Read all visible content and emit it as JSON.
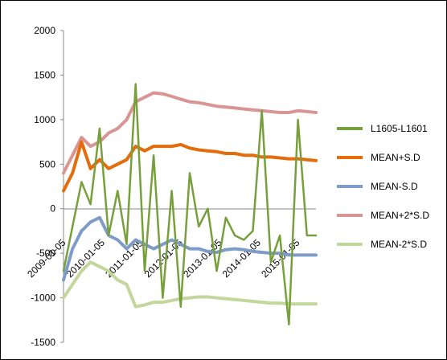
{
  "chart_data": {
    "type": "line",
    "title": "",
    "xlabel": "",
    "ylabel": "",
    "ylim": [
      -1500,
      2000
    ],
    "yticks": [
      2000,
      1500,
      1000,
      500,
      0,
      -500,
      -1000,
      -1500
    ],
    "xticks": [
      "2009-01-05",
      "2010-01-05",
      "2011-01-05",
      "2012-01-05",
      "2013-01-05",
      "2014-01-05",
      "2015-01-05"
    ],
    "x": [
      "2009-01",
      "2009-04",
      "2009-07",
      "2009-10",
      "2010-01",
      "2010-04",
      "2010-07",
      "2010-10",
      "2011-01",
      "2011-04",
      "2011-07",
      "2011-10",
      "2012-01",
      "2012-04",
      "2012-07",
      "2012-10",
      "2013-01",
      "2013-04",
      "2013-07",
      "2013-10",
      "2014-01",
      "2014-04",
      "2014-07",
      "2014-10",
      "2015-01",
      "2015-04",
      "2015-07",
      "2015-10",
      "2016-01"
    ],
    "series": [
      {
        "name": "L1605-L1601",
        "color": "#77a03c",
        "values": [
          -700,
          -200,
          300,
          50,
          900,
          -300,
          200,
          -400,
          1400,
          -700,
          600,
          -1000,
          200,
          -1100,
          400,
          -200,
          0,
          -700,
          -100,
          -300,
          -350,
          -250,
          1100,
          -600,
          -300,
          -1300,
          1000,
          -300,
          -300
        ]
      },
      {
        "name": "MEAN+S.D",
        "color": "#e46c0a",
        "values": [
          200,
          400,
          750,
          450,
          550,
          450,
          500,
          550,
          700,
          650,
          700,
          700,
          700,
          720,
          680,
          660,
          650,
          640,
          620,
          620,
          600,
          600,
          580,
          580,
          570,
          560,
          560,
          550,
          540
        ]
      },
      {
        "name": "MEAN-S.D",
        "color": "#7f9bc8",
        "values": [
          -800,
          -450,
          -250,
          -150,
          -100,
          -300,
          -350,
          -450,
          -350,
          -400,
          -450,
          -400,
          -350,
          -400,
          -450,
          -450,
          -480,
          -490,
          -460,
          -450,
          -460,
          -480,
          -490,
          -500,
          -500,
          -520,
          -520,
          -520,
          -520
        ]
      },
      {
        "name": "MEAN+2*S.D",
        "color": "#d99594",
        "values": [
          400,
          600,
          800,
          700,
          750,
          850,
          900,
          1000,
          1200,
          1250,
          1300,
          1290,
          1260,
          1230,
          1200,
          1190,
          1170,
          1150,
          1140,
          1130,
          1120,
          1110,
          1100,
          1090,
          1080,
          1080,
          1100,
          1090,
          1080
        ]
      },
      {
        "name": "MEAN-2*S.D",
        "color": "#c3d69b",
        "values": [
          -1000,
          -850,
          -700,
          -600,
          -650,
          -700,
          -800,
          -850,
          -1100,
          -1080,
          -1050,
          -1050,
          -1030,
          -1010,
          -1000,
          -990,
          -990,
          -1000,
          -1010,
          -1020,
          -1030,
          -1040,
          -1050,
          -1060,
          -1060,
          -1070,
          -1070,
          -1070,
          -1070
        ]
      }
    ],
    "legend_position": "right",
    "grid": false
  }
}
